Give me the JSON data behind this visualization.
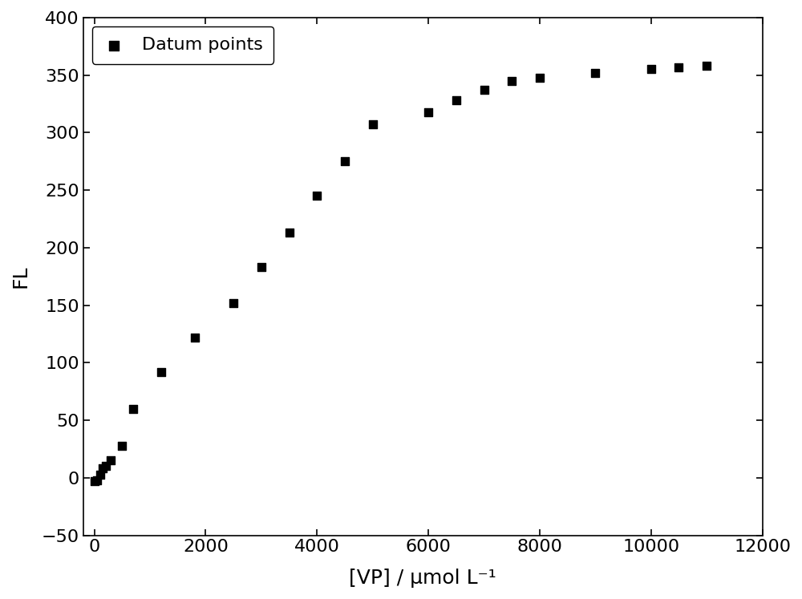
{
  "x": [
    0,
    50,
    100,
    150,
    200,
    300,
    500,
    700,
    1200,
    1800,
    2500,
    3000,
    3500,
    4000,
    4500,
    5000,
    6000,
    6500,
    7000,
    7500,
    8000,
    9000,
    10000,
    10500,
    11000
  ],
  "y": [
    -3,
    -2,
    3,
    8,
    10,
    15,
    28,
    60,
    92,
    122,
    152,
    183,
    213,
    245,
    275,
    307,
    318,
    328,
    337,
    345,
    348,
    352,
    355,
    357,
    358
  ],
  "xlabel": "[VP] / μmol L⁻¹",
  "ylabel": "FL",
  "xlim": [
    -200,
    12000
  ],
  "ylim": [
    -50,
    400
  ],
  "xticks": [
    0,
    2000,
    4000,
    6000,
    8000,
    10000,
    12000
  ],
  "yticks": [
    -50,
    0,
    50,
    100,
    150,
    200,
    250,
    300,
    350,
    400
  ],
  "legend_label": "Datum points",
  "marker": "s",
  "marker_color": "#000000",
  "marker_size": 7,
  "background_color": "#ffffff",
  "label_fontsize": 18,
  "tick_fontsize": 16,
  "legend_fontsize": 16
}
